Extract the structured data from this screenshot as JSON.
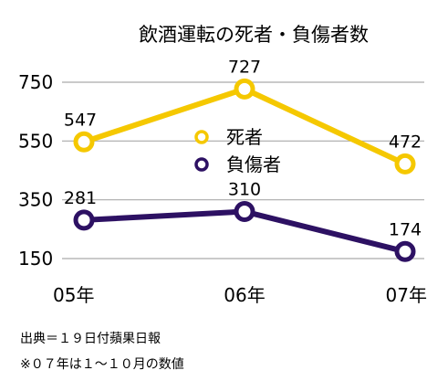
{
  "chart_data": {
    "type": "line",
    "title": "飲酒運転の死者・負傷者数",
    "categories": [
      "05年",
      "06年",
      "07年"
    ],
    "xlabel": "",
    "ylabel": "",
    "yticks": [
      "750",
      "550",
      "350",
      "150"
    ],
    "ylim": [
      150,
      750
    ],
    "grid": true,
    "legend_position": "center",
    "series": [
      {
        "name": "死者",
        "values": [
          547,
          727,
          472
        ],
        "color": "#f5c800"
      },
      {
        "name": "負傷者",
        "values": [
          281,
          310,
          174
        ],
        "color": "#2d1163"
      }
    ]
  },
  "notes": {
    "source": "出典＝１９日付蘋果日報",
    "remark": "※０７年は１〜１０月の数値"
  }
}
